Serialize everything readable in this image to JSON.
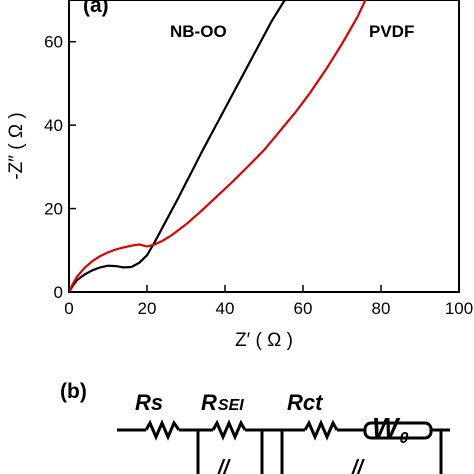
{
  "panel_a_label": "(a)",
  "panel_b_label": "(b)",
  "chart_data": {
    "type": "line",
    "xlabel": "Z′ ( Ω )",
    "ylabel": "-Z″ ( Ω )",
    "xlim": [
      0,
      100
    ],
    "ylim": [
      0,
      70
    ],
    "x_ticks": [
      "0",
      "20",
      "40",
      "60",
      "80",
      "100"
    ],
    "y_ticks": [
      "0",
      "20",
      "40",
      "60"
    ],
    "x_tick_values": [
      0,
      20,
      40,
      60,
      80,
      100
    ],
    "y_tick_values": [
      0,
      20,
      40,
      60
    ],
    "series": [
      {
        "name": "NB-OO",
        "color": "#000000",
        "x": [
          0,
          1,
          2,
          4,
          6,
          8,
          10,
          12,
          14,
          16,
          18,
          20,
          22,
          24,
          26,
          28,
          30,
          32,
          34,
          36,
          38,
          40,
          42,
          44,
          46,
          48,
          50,
          52,
          54,
          56,
          58
        ],
        "y": [
          0,
          1.5,
          2.8,
          4.2,
          5.2,
          5.9,
          6.3,
          6.2,
          5.9,
          6.0,
          7.0,
          8.8,
          12.0,
          15.5,
          19.0,
          22.5,
          26.2,
          29.8,
          33.5,
          37.0,
          40.5,
          44.0,
          47.5,
          51.0,
          54.5,
          58.0,
          61.5,
          65.0,
          68.0,
          71.0,
          74.0
        ]
      },
      {
        "name": "PVDF",
        "color": "#dd0000",
        "x": [
          0,
          1,
          2,
          4,
          6,
          8,
          10,
          12,
          14,
          16,
          18,
          20,
          22,
          24,
          26,
          28,
          30,
          34,
          38,
          42,
          46,
          50,
          54,
          58,
          62,
          66,
          70,
          74,
          77
        ],
        "y": [
          0,
          2.0,
          3.6,
          5.8,
          7.4,
          8.6,
          9.5,
          10.2,
          10.7,
          11.1,
          11.4,
          10.9,
          11.4,
          12.3,
          13.4,
          14.8,
          16.2,
          19.5,
          23.0,
          26.5,
          30.2,
          34.0,
          38.5,
          43.0,
          48.0,
          53.5,
          59.5,
          66.0,
          72.0
        ]
      }
    ]
  },
  "circuit": {
    "rs_label": "Rs",
    "rsei_main": "R",
    "rsei_sub": "SEI",
    "rct_label": "Rct",
    "w_main": "W",
    "w_sub": "0",
    "cpe_marks": "//"
  }
}
